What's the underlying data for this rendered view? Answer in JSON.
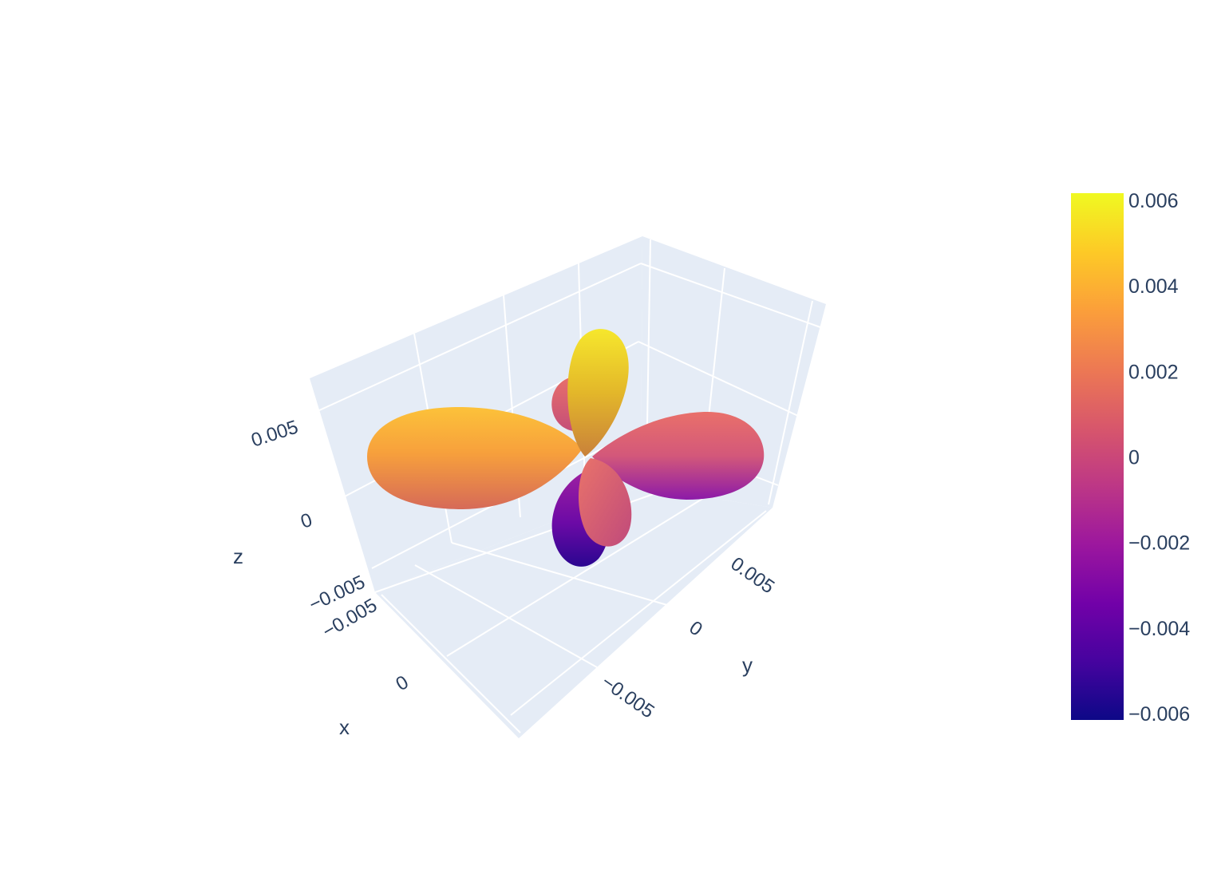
{
  "chart_data": {
    "type": "surface-3d",
    "description_kind": "lobed 3D surface colored by value",
    "title": "",
    "axes": {
      "x": {
        "label": "x",
        "ticks": [
          "−0.005",
          "0"
        ]
      },
      "y": {
        "label": "y",
        "ticks": [
          "−0.005",
          "0",
          "0.005"
        ]
      },
      "z": {
        "label": "z",
        "ticks": [
          "−0.005",
          "0",
          "0.005"
        ]
      }
    },
    "axis_range": [
      -0.0065,
      0.0065
    ],
    "scene_background": "#e5ecf6",
    "grid": true,
    "colorscale": "Plasma",
    "colorbar": {
      "min": -0.006,
      "max": 0.006,
      "ticks": [
        "0.006",
        "0.004",
        "0.002",
        "0",
        "−0.002",
        "−0.004",
        "−0.006"
      ],
      "placement": "right"
    },
    "lobes": [
      {
        "name": "lobe-left",
        "direction": "-y",
        "extent": 0.0058,
        "color_value": 0.0032
      },
      {
        "name": "lobe-right",
        "direction": "+y",
        "extent": 0.0046,
        "color_value": -0.0008
      },
      {
        "name": "lobe-top",
        "direction": "+z",
        "extent": 0.0062,
        "color_value": 0.0055
      },
      {
        "name": "lobe-bottom",
        "direction": "-z",
        "extent": 0.006,
        "color_value": -0.0055
      },
      {
        "name": "lobe-back-small",
        "direction": "+x",
        "extent": 0.0022,
        "color_value": 0.0012
      },
      {
        "name": "lobe-front-small",
        "direction": "-x",
        "extent": 0.0026,
        "color_value": 0.0008
      }
    ]
  }
}
